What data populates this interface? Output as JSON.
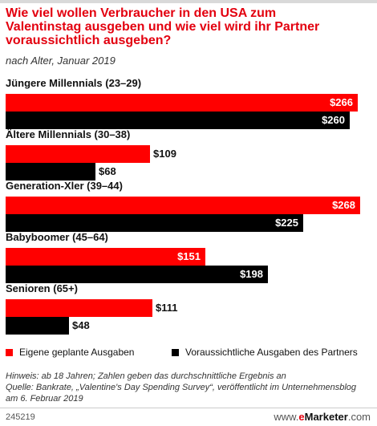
{
  "title": "Wie viel wollen Verbraucher in den USA zum Valentinstag ausgeben und wie viel wird ihr Partner voraussichtlich ausgeben?",
  "subtitle": "nach Alter, Januar 2019",
  "chart_data": {
    "type": "bar",
    "orientation": "horizontal",
    "categories": [
      "Jüngere Millennials (23–29)",
      "Ältere Millennials (30–38)",
      "Generation-Xler (39–44)",
      "Babyboomer (45–64)",
      "Senioren (65+)"
    ],
    "series": [
      {
        "name": "Eigene geplante Ausgaben",
        "values": [
          266,
          109,
          268,
          151,
          111
        ],
        "labels": [
          "$266",
          "$109",
          "$268",
          "$151",
          "$111"
        ]
      },
      {
        "name": "Voraussichtliche Ausgaben des Partners",
        "values": [
          260,
          68,
          225,
          198,
          48
        ],
        "labels": [
          "$260",
          "$68",
          "$225",
          "$198",
          "$48"
        ]
      }
    ],
    "legend_position": "bottom",
    "grid": false
  },
  "colors": {
    "series_0": "#ff0000",
    "series_1": "#000000",
    "title": "#e3000f"
  },
  "note": {
    "line1": "Hinweis: ab 18 Jahren; Zahlen geben das durchschnittliche Ergebnis an",
    "line2": "Quelle: Bankrate, „Valentine's Day Spending Survey“, veröffentlicht im Unternehmensblog",
    "line3": "am 6. Februar 2019"
  },
  "footer": {
    "chart_id": "245219",
    "brand_prefix": "www.",
    "brand_e": "e",
    "brand_rest": "Marketer",
    "brand_suffix": ".com"
  }
}
